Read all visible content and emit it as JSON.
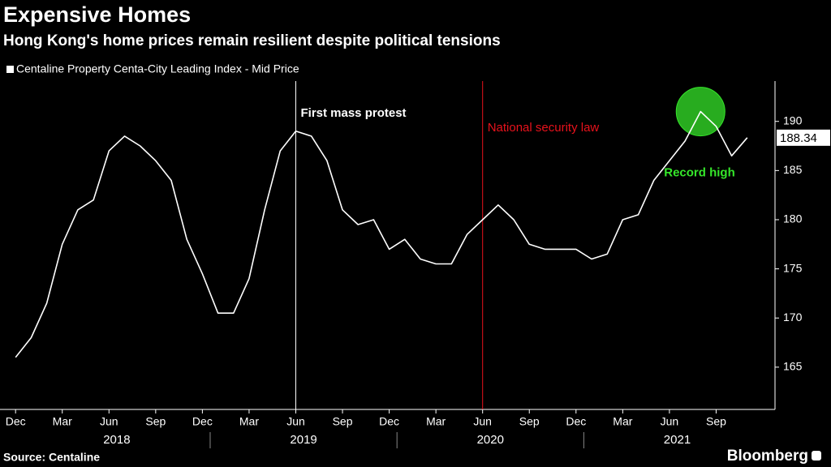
{
  "chart_data": {
    "type": "line",
    "title": "Expensive Homes",
    "subtitle": "Hong Kong's home prices remain resilient despite political tensions",
    "source": "Source: Centaline",
    "brand": "Bloomberg",
    "x": [
      "2017-12",
      "2018-01",
      "2018-02",
      "2018-03",
      "2018-04",
      "2018-05",
      "2018-06",
      "2018-07",
      "2018-08",
      "2018-09",
      "2018-10",
      "2018-11",
      "2018-12",
      "2019-01",
      "2019-02",
      "2019-03",
      "2019-04",
      "2019-05",
      "2019-06",
      "2019-07",
      "2019-08",
      "2019-09",
      "2019-10",
      "2019-11",
      "2019-12",
      "2020-01",
      "2020-02",
      "2020-03",
      "2020-04",
      "2020-05",
      "2020-06",
      "2020-07",
      "2020-08",
      "2020-09",
      "2020-10",
      "2020-11",
      "2020-12",
      "2021-01",
      "2021-02",
      "2021-03",
      "2021-04",
      "2021-05",
      "2021-06",
      "2021-07",
      "2021-08",
      "2021-09",
      "2021-10",
      "2021-11"
    ],
    "series": [
      {
        "name": "Centaline Property Centa-City Leading Index - Mid Price",
        "color": "#ffffff",
        "values": [
          166,
          168,
          171.5,
          177.5,
          181,
          182,
          187,
          188.5,
          187.5,
          186,
          184,
          178,
          174.5,
          170.5,
          170.5,
          174,
          181,
          187,
          189,
          188.5,
          186,
          181,
          179.5,
          180,
          177,
          178,
          176,
          175.5,
          175.5,
          178.5,
          180,
          181.5,
          180,
          177.5,
          177,
          177,
          177,
          176,
          176.5,
          180,
          180.5,
          184,
          186,
          188,
          191,
          189.5,
          186.5,
          188.34
        ]
      }
    ],
    "xlim": [
      "2017-11",
      "2021-12"
    ],
    "xticks": [
      {
        "value": "2017-12",
        "label": "Dec"
      },
      {
        "value": "2018-03",
        "label": "Mar"
      },
      {
        "value": "2018-06",
        "label": "Jun"
      },
      {
        "value": "2018-09",
        "label": "Sep"
      },
      {
        "value": "2018-12",
        "label": "Dec"
      },
      {
        "value": "2019-03",
        "label": "Mar"
      },
      {
        "value": "2019-06",
        "label": "Jun"
      },
      {
        "value": "2019-09",
        "label": "Sep"
      },
      {
        "value": "2019-12",
        "label": "Dec"
      },
      {
        "value": "2020-03",
        "label": "Mar"
      },
      {
        "value": "2020-06",
        "label": "Jun"
      },
      {
        "value": "2020-09",
        "label": "Sep"
      },
      {
        "value": "2020-12",
        "label": "Dec"
      },
      {
        "value": "2021-03",
        "label": "Mar"
      },
      {
        "value": "2021-06",
        "label": "Jun"
      },
      {
        "value": "2021-09",
        "label": "Sep"
      }
    ],
    "years": [
      2018,
      2019,
      2020,
      2021
    ],
    "ylim": [
      160.7,
      194.1
    ],
    "yticks": [
      165,
      170,
      175,
      180,
      185,
      190
    ],
    "grid": false,
    "annotations": [
      {
        "text": "First mass protest",
        "x": "2019-06",
        "color": "#ffffff",
        "kind": "vline"
      },
      {
        "text": "National security law",
        "x": "2020-06",
        "color": "#e8121c",
        "kind": "vline"
      },
      {
        "text": "Record high",
        "x": "2021-08",
        "color": "#35e62a",
        "kind": "circle"
      }
    ]
  }
}
